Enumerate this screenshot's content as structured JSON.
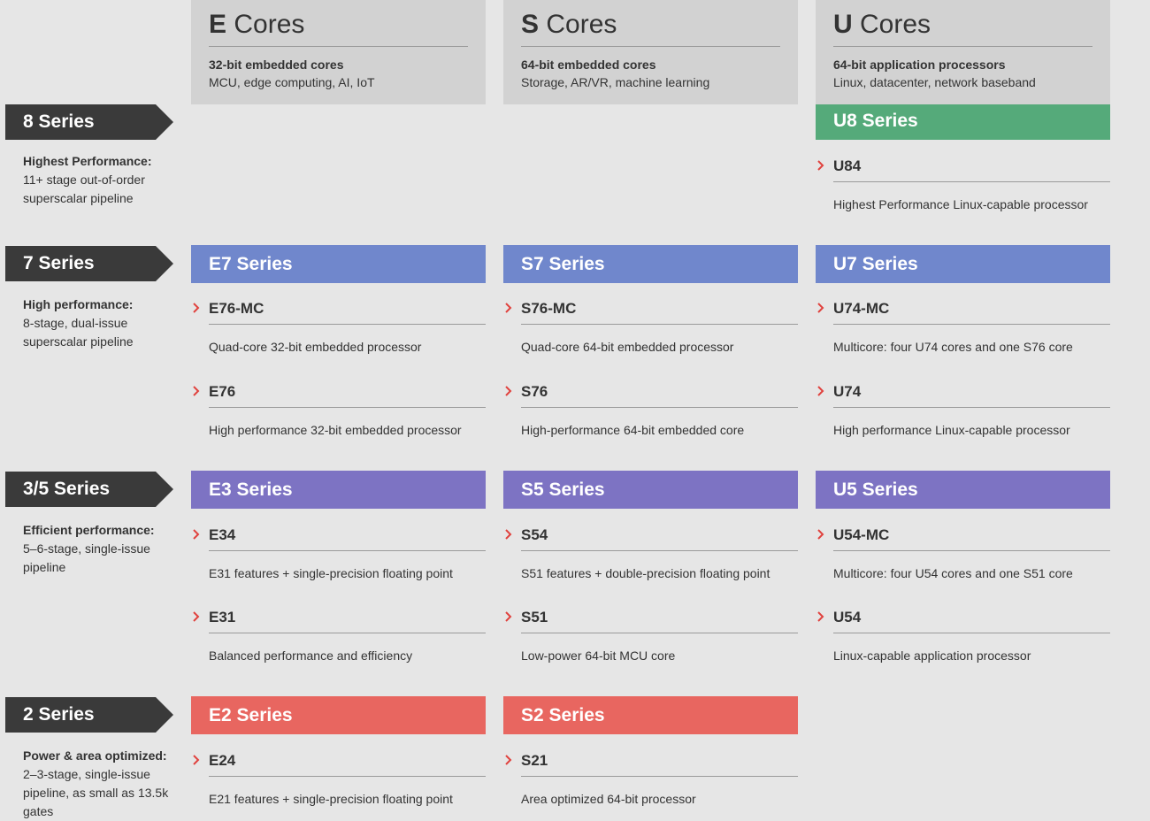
{
  "colors": {
    "u8": "#55aa7a",
    "series7": "#7087cc",
    "series35": "#7d73c3",
    "series2": "#e86660",
    "chevron": "#e0423e"
  },
  "columns": [
    {
      "letter": "E",
      "rest": " Cores",
      "sub1": "32-bit embedded cores",
      "sub2": "MCU, edge computing, AI, IoT"
    },
    {
      "letter": "S",
      "rest": " Cores",
      "sub1": "64-bit embedded cores",
      "sub2": "Storage, AR/VR, machine learning"
    },
    {
      "letter": "U",
      "rest": " Cores",
      "sub1": "64-bit application processors",
      "sub2": "Linux, datacenter, network baseband"
    }
  ],
  "tiers": [
    {
      "label": "8 Series",
      "lead": "Highest Performance:",
      "text": "11+ stage out-of-order superscalar pipeline"
    },
    {
      "label": "7 Series",
      "lead": "High performance:",
      "text": "8-stage, dual-issue superscalar pipeline"
    },
    {
      "label": "3/5 Series",
      "lead": "Efficient performance:",
      "text": "5–6-stage, single-issue pipeline"
    },
    {
      "label": "2 Series",
      "lead": "Power & area optimized:",
      "text": "2–3-stage, single-issue pipeline, as small as 13.5k gates"
    }
  ],
  "series": {
    "u8": "U8 Series",
    "e7": "E7 Series",
    "s7": "S7 Series",
    "u7": "U7 Series",
    "e3": "E3 Series",
    "s5": "S5 Series",
    "u5": "U5 Series",
    "e2": "E2 Series",
    "s2": "S2 Series"
  },
  "cores": {
    "u84": {
      "name": "U84",
      "desc": "Highest Performance Linux-capable processor"
    },
    "e76mc": {
      "name": "E76-MC",
      "desc": "Quad-core 32-bit embedded processor"
    },
    "e76": {
      "name": "E76",
      "desc": "High performance 32-bit embedded processor"
    },
    "s76mc": {
      "name": "S76-MC",
      "desc": "Quad-core 64-bit embedded processor"
    },
    "s76": {
      "name": "S76",
      "desc": "High-performance 64-bit embedded core"
    },
    "u74mc": {
      "name": "U74-MC",
      "desc": "Multicore: four U74 cores and one S76 core"
    },
    "u74": {
      "name": "U74",
      "desc": "High performance Linux-capable processor"
    },
    "e34": {
      "name": "E34",
      "desc": "E31 features + single-precision floating point"
    },
    "e31": {
      "name": "E31",
      "desc": "Balanced performance and efficiency"
    },
    "s54": {
      "name": "S54",
      "desc": "S51 features + double-precision floating point"
    },
    "s51": {
      "name": "S51",
      "desc": "Low-power 64-bit MCU core"
    },
    "u54mc": {
      "name": "U54-MC",
      "desc": "Multicore: four U54 cores and one S51 core"
    },
    "u54": {
      "name": "U54",
      "desc": "Linux-capable application processor"
    },
    "e24": {
      "name": "E24",
      "desc": "E21 features + single-precision floating point"
    },
    "s21": {
      "name": "S21",
      "desc": "Area optimized 64-bit processor"
    }
  }
}
